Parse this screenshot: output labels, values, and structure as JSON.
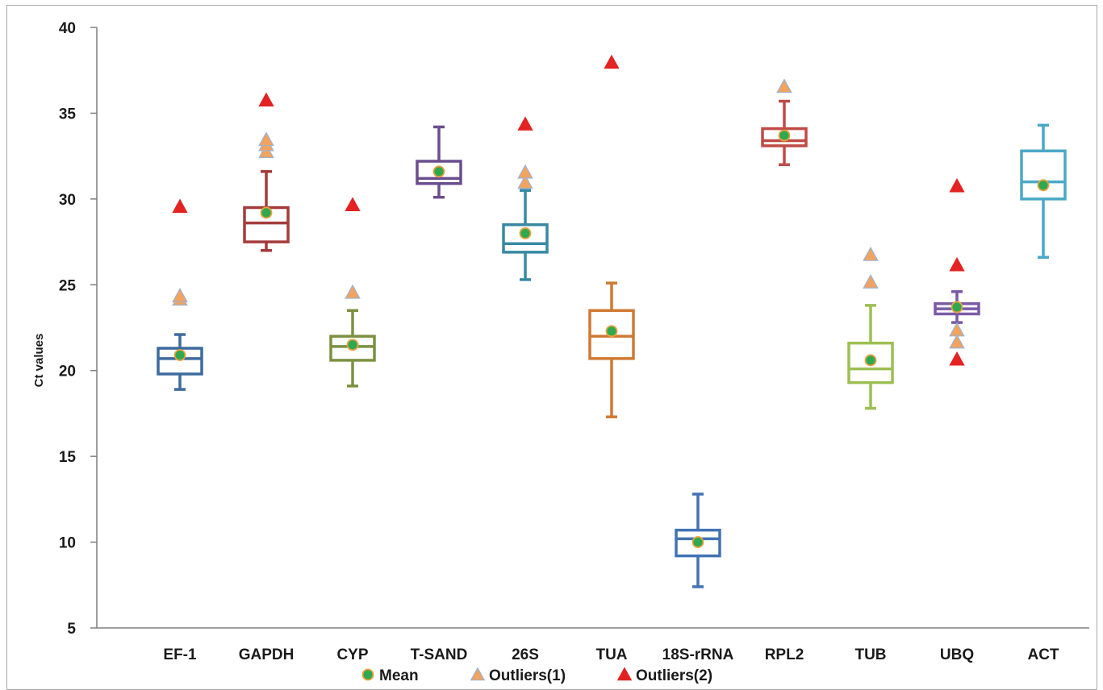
{
  "chart_data": {
    "type": "box",
    "ylabel": "Ct values",
    "xlabel": "",
    "ylim": [
      5,
      40
    ],
    "yticks": [
      5,
      10,
      15,
      20,
      25,
      30,
      35,
      40
    ],
    "grid": false,
    "legend_position": "bottom",
    "legend": [
      {
        "key": "mean",
        "label": "Mean",
        "color": "#2fa84f",
        "edge": "#e9a23b",
        "marker": "circle"
      },
      {
        "key": "out1",
        "label": "Outliers(1)",
        "color": "#f2a35e",
        "edge": "#9bb3d6",
        "marker": "triangle"
      },
      {
        "key": "out2",
        "label": "Outliers(2)",
        "color": "#e32222",
        "edge": "#e32222",
        "marker": "triangle"
      }
    ],
    "categories": [
      "EF-1",
      "GAPDH",
      "CYP",
      "T-SAND",
      "26S",
      "TUA",
      "18S-rRNA",
      "RPL2",
      "TUB",
      "UBQ",
      "ACT"
    ],
    "boxes": [
      {
        "name": "EF-1",
        "color": "#3d6a9e",
        "min": 18.9,
        "q1": 19.8,
        "median": 20.7,
        "q3": 21.3,
        "max": 22.1,
        "mean": 20.9,
        "outliers1": [
          24.1,
          24.3
        ],
        "outliers2": [
          29.5
        ]
      },
      {
        "name": "GAPDH",
        "color": "#a33c3b",
        "min": 27.0,
        "q1": 27.5,
        "median": 28.6,
        "q3": 29.5,
        "max": 31.6,
        "mean": 29.2,
        "outliers1": [
          32.7,
          33.1,
          33.4
        ],
        "outliers2": [
          35.7
        ]
      },
      {
        "name": "CYP",
        "color": "#7b9140",
        "min": 19.1,
        "q1": 20.6,
        "median": 21.4,
        "q3": 22.0,
        "max": 23.5,
        "mean": 21.5,
        "outliers1": [
          24.5
        ],
        "outliers2": [
          29.6
        ]
      },
      {
        "name": "T-SAND",
        "color": "#6a4d8f",
        "min": 30.1,
        "q1": 30.9,
        "median": 31.2,
        "q3": 32.2,
        "max": 34.2,
        "mean": 31.6,
        "outliers1": [],
        "outliers2": []
      },
      {
        "name": "26S",
        "color": "#3889a3",
        "min": 25.3,
        "q1": 26.9,
        "median": 27.4,
        "q3": 28.5,
        "max": 30.5,
        "mean": 28.0,
        "outliers1": [
          30.9,
          31.5
        ],
        "outliers2": [
          34.3
        ]
      },
      {
        "name": "TUA",
        "color": "#cf7a33",
        "min": 17.3,
        "q1": 20.7,
        "median": 22.0,
        "q3": 23.5,
        "max": 25.1,
        "mean": 22.3,
        "outliers1": [],
        "outliers2": [
          37.9
        ]
      },
      {
        "name": "18S-rRNA",
        "color": "#4273b3",
        "min": 7.4,
        "q1": 9.2,
        "median": 10.2,
        "q3": 10.7,
        "max": 12.8,
        "mean": 10.0,
        "outliers1": [],
        "outliers2": []
      },
      {
        "name": "RPL2",
        "color": "#bf4b47",
        "min": 32.0,
        "q1": 33.1,
        "median": 33.4,
        "q3": 34.1,
        "max": 35.7,
        "mean": 33.7,
        "outliers1": [
          36.5
        ],
        "outliers2": []
      },
      {
        "name": "TUB",
        "color": "#9cbf52",
        "min": 17.8,
        "q1": 19.3,
        "median": 20.1,
        "q3": 21.6,
        "max": 23.8,
        "mean": 20.6,
        "outliers1": [
          25.1,
          26.7
        ],
        "outliers2": []
      },
      {
        "name": "UBQ",
        "color": "#7a5ba6",
        "min": 22.8,
        "q1": 23.3,
        "median": 23.6,
        "q3": 23.9,
        "max": 24.6,
        "mean": 23.7,
        "outliers1": [
          22.3,
          21.6
        ],
        "outliers2": [
          26.1,
          20.6,
          30.7
        ]
      },
      {
        "name": "ACT",
        "color": "#4aa8c6",
        "min": 26.6,
        "q1": 30.0,
        "median": 31.0,
        "q3": 32.8,
        "max": 34.3,
        "mean": 30.8,
        "outliers1": [],
        "outliers2": []
      }
    ]
  }
}
